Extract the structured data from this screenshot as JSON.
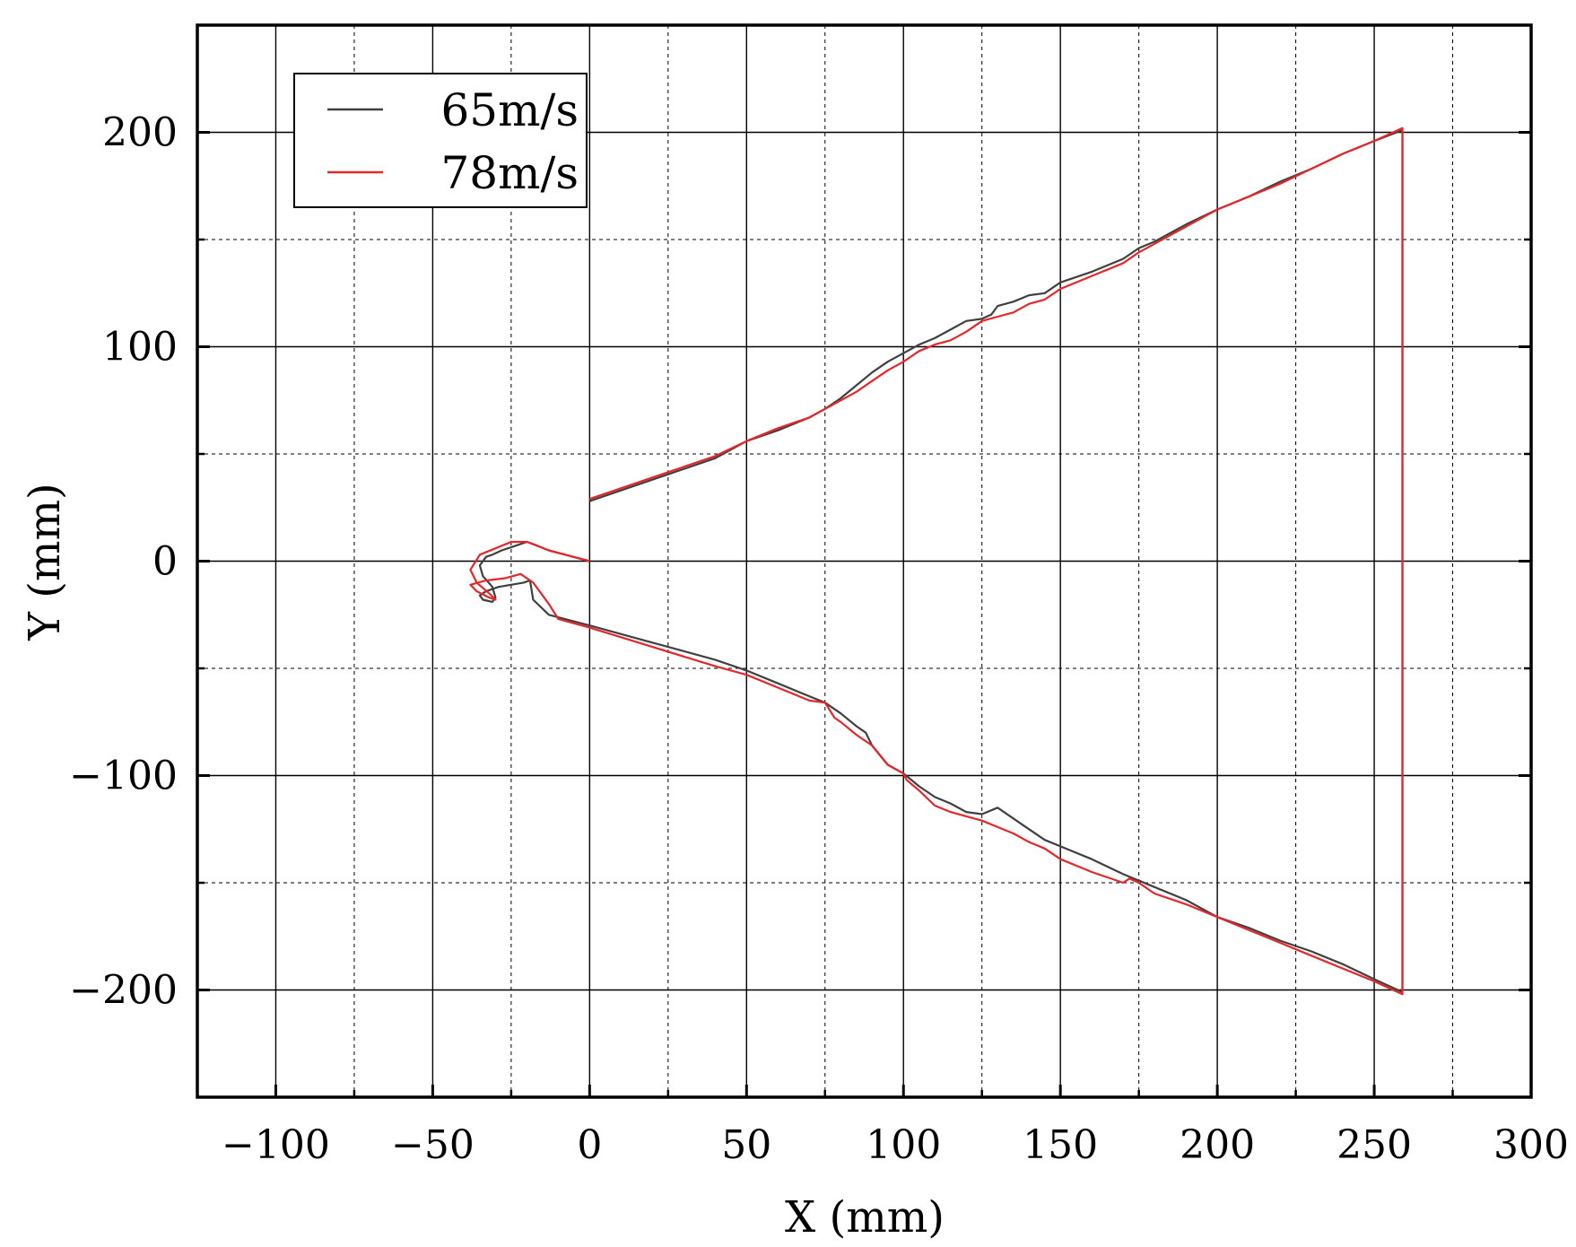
{
  "chart_data": {
    "type": "line",
    "title": "",
    "xlabel": "X (mm)",
    "ylabel": "Y (mm)",
    "xlim": [
      -125,
      300
    ],
    "ylim": [
      -250,
      250
    ],
    "x_ticks": [
      -100,
      -50,
      0,
      50,
      100,
      150,
      200,
      250,
      300
    ],
    "y_ticks": [
      200,
      100,
      0,
      -100,
      -200
    ],
    "x_tick_labels": [
      "−100",
      "−50",
      "0",
      "50",
      "100",
      "150",
      "200",
      "250",
      "300"
    ],
    "y_tick_labels": [
      "200",
      "100",
      "0",
      "−100",
      "−200"
    ],
    "x_minor_grid": [
      -75,
      -25,
      25,
      75,
      125,
      175,
      225,
      275
    ],
    "y_minor_grid": [
      150,
      50,
      -50,
      -150
    ],
    "grid": true,
    "legend_position": "top-left",
    "series": [
      {
        "name": "65m/s",
        "color": "#404040",
        "x": [
          0,
          -13,
          -18,
          -20,
          -24,
          -28,
          -31,
          -33,
          -35,
          -34,
          -31,
          -30,
          -31,
          -34,
          -35,
          -33,
          -29,
          -25,
          -21,
          -19,
          -18,
          -13,
          0,
          20,
          40,
          50,
          60,
          70,
          75,
          80,
          85,
          88,
          90,
          95,
          100,
          105,
          110,
          115,
          120,
          125,
          130,
          135,
          140,
          145,
          150,
          160,
          170,
          180,
          190,
          200,
          210,
          220,
          230,
          240,
          250,
          259,
          259,
          259,
          250,
          240,
          230,
          220,
          210,
          205,
          200,
          190,
          180,
          175,
          170,
          160,
          150,
          145,
          140,
          135,
          130,
          128,
          125,
          120,
          115,
          110,
          105,
          100,
          95,
          90,
          85,
          80,
          75,
          70,
          60,
          50,
          40,
          20,
          0
        ],
        "y": [
          0,
          5,
          8,
          9,
          7,
          5,
          3,
          2,
          -2,
          -7,
          -12,
          -17,
          -19,
          -18,
          -16,
          -14,
          -12,
          -11,
          -10,
          -9,
          -18,
          -25,
          -30,
          -38,
          -46,
          -51,
          -57,
          -63,
          -66,
          -71,
          -77,
          -80,
          -86,
          -95,
          -99,
          -105,
          -110,
          -113,
          -117,
          -118,
          -115,
          -120,
          -125,
          -130,
          -133,
          -139,
          -146,
          -152,
          -158,
          -166,
          -171,
          -177,
          -182,
          -188,
          -195,
          -201,
          0,
          201,
          196,
          190,
          183,
          177,
          170,
          167,
          164,
          157,
          149,
          146,
          141,
          135,
          130,
          125,
          124,
          121,
          119,
          115,
          113,
          112,
          108,
          104,
          101,
          97,
          93,
          88,
          82,
          76,
          71,
          67,
          61,
          56,
          48,
          38,
          28
        ]
      },
      {
        "name": "78m/s",
        "color": "#e5272b",
        "x": [
          0,
          -13,
          -20,
          -25,
          -30,
          -35,
          -38,
          -36,
          -32,
          -30,
          -32,
          -36,
          -38,
          -33,
          -27,
          -22,
          -18,
          -13,
          -10,
          0,
          20,
          40,
          50,
          60,
          70,
          75,
          78,
          80,
          85,
          90,
          95,
          100,
          101,
          105,
          110,
          115,
          120,
          125,
          130,
          135,
          140,
          145,
          150,
          160,
          170,
          172,
          175,
          180,
          190,
          200,
          210,
          220,
          230,
          240,
          250,
          259,
          259,
          259,
          250,
          240,
          230,
          220,
          210,
          205,
          200,
          190,
          180,
          175,
          170,
          160,
          150,
          145,
          140,
          135,
          130,
          125,
          120,
          115,
          110,
          105,
          100,
          95,
          90,
          85,
          80,
          75,
          70,
          60,
          50,
          40,
          20,
          0
        ],
        "y": [
          0,
          5,
          9,
          9,
          6,
          3,
          -4,
          -10,
          -15,
          -18,
          -17,
          -14,
          -11,
          -9,
          -8,
          -6,
          -10,
          -20,
          -27,
          -31,
          -40,
          -49,
          -53,
          -59,
          -65,
          -66,
          -73,
          -75,
          -81,
          -86,
          -95,
          -99,
          -102,
          -107,
          -114,
          -117,
          -119,
          -121,
          -124,
          -127,
          -131,
          -134,
          -139,
          -145,
          -150,
          -148,
          -150,
          -155,
          -160,
          -166,
          -172,
          -178,
          -184,
          -190,
          -196,
          -202,
          0,
          202,
          196,
          190,
          183,
          176,
          170,
          167,
          164,
          156,
          148,
          144,
          139,
          133,
          127,
          122,
          120,
          116,
          114,
          112,
          107,
          103,
          101,
          98,
          93,
          89,
          84,
          79,
          75,
          71,
          67,
          62,
          56,
          49,
          39,
          29
        ]
      }
    ]
  }
}
